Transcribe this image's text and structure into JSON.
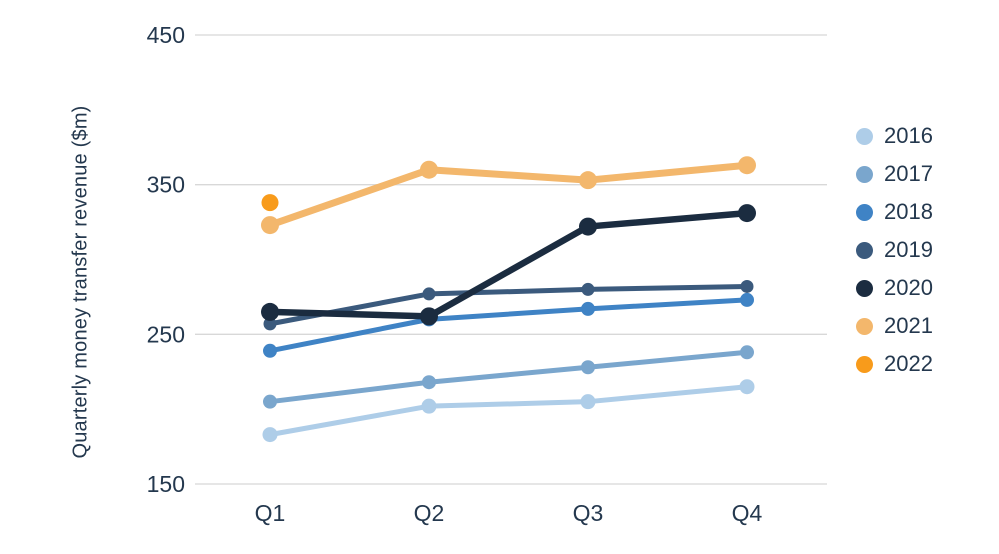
{
  "chart_data": {
    "type": "line",
    "title": "",
    "xlabel": "",
    "ylabel": "Quarterly money transfer revenue ($m)",
    "categories": [
      "Q1",
      "Q2",
      "Q3",
      "Q4"
    ],
    "ylim": [
      150,
      450
    ],
    "yticks": [
      450,
      350,
      250,
      150
    ],
    "grid": true,
    "legend_position": "right",
    "series": [
      {
        "name": "2016",
        "color": "#aecde8",
        "values": [
          183,
          202,
          205,
          215
        ]
      },
      {
        "name": "2017",
        "color": "#7aa6cd",
        "values": [
          205,
          218,
          228,
          238
        ]
      },
      {
        "name": "2018",
        "color": "#3f83c5",
        "values": [
          239,
          260,
          267,
          273
        ]
      },
      {
        "name": "2019",
        "color": "#3b5a7d",
        "values": [
          257,
          277,
          280,
          282
        ]
      },
      {
        "name": "2020",
        "color": "#1b2c40",
        "values": [
          265,
          262,
          322,
          331
        ]
      },
      {
        "name": "2021",
        "color": "#f3b76c",
        "values": [
          323,
          360,
          353,
          363
        ]
      },
      {
        "name": "2022",
        "color": "#f89b1b",
        "values": [
          338,
          null,
          null,
          null
        ]
      }
    ]
  },
  "colors": {
    "text": "#24384e",
    "grid": "#d8d8d8",
    "background": "#ffffff"
  }
}
